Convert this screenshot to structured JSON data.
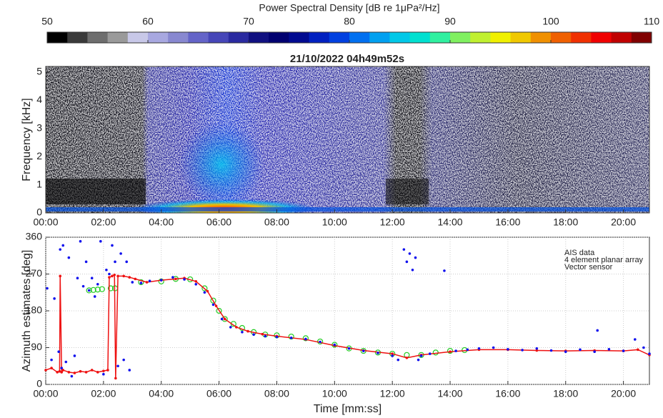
{
  "chart_data": [
    {
      "type": "colorbar",
      "title": "Power Spectral Density [dB re 1μPa²/Hz]",
      "clim": [
        50,
        110
      ],
      "cticks": [
        50,
        60,
        70,
        80,
        90,
        100,
        110
      ],
      "colors": [
        "#000000",
        "#3a3a3a",
        "#6e6e6e",
        "#9a9a9a",
        "#c8c8e8",
        "#a8a8e0",
        "#8888d0",
        "#6464c8",
        "#4646b8",
        "#2a2aa0",
        "#101080",
        "#000070",
        "#000a90",
        "#0020c0",
        "#0040e0",
        "#0070f0",
        "#00a0f0",
        "#00c8e8",
        "#00e0d0",
        "#30f0a0",
        "#80f060",
        "#c0f030",
        "#f0f000",
        "#f0c800",
        "#f09000",
        "#f06000",
        "#f03000",
        "#f00000",
        "#c00000",
        "#800000"
      ]
    },
    {
      "type": "spectrogram",
      "title": "21/10/2022 04h49m52s",
      "ylabel": "Frequency [kHz]",
      "xlim": [
        0,
        20.9
      ],
      "ylim": [
        0,
        5.2
      ],
      "yticks": [
        0,
        1,
        2,
        3,
        4,
        5
      ],
      "xticks": [
        {
          "value": 0,
          "label": "00:00"
        },
        {
          "value": 2,
          "label": "02:00"
        },
        {
          "value": 4,
          "label": "04:00"
        },
        {
          "value": 6,
          "label": "06:00"
        },
        {
          "value": 8,
          "label": "08:00"
        },
        {
          "value": 10,
          "label": "10:00"
        },
        {
          "value": 12,
          "label": "12:00"
        },
        {
          "value": 14,
          "label": "14:00"
        },
        {
          "value": 16,
          "label": "16:00"
        },
        {
          "value": 18,
          "label": "18:00"
        },
        {
          "value": 20,
          "label": "20:00"
        }
      ]
    },
    {
      "type": "scatter",
      "xlabel": "Time [mm:ss]",
      "ylabel": "Azimuth estimates [deg]",
      "grid": true,
      "legend": "top-right",
      "xlim": [
        0,
        20.9
      ],
      "ylim": [
        0,
        360
      ],
      "yticks": [
        0,
        90,
        180,
        270,
        360
      ],
      "xticks": [
        {
          "value": 0,
          "label": "00:00"
        },
        {
          "value": 2,
          "label": "02:00"
        },
        {
          "value": 4,
          "label": "04:00"
        },
        {
          "value": 6,
          "label": "06:00"
        },
        {
          "value": 8,
          "label": "08:00"
        },
        {
          "value": 10,
          "label": "10:00"
        },
        {
          "value": 12,
          "label": "12:00"
        },
        {
          "value": 14,
          "label": "14:00"
        },
        {
          "value": 16,
          "label": "16:00"
        },
        {
          "value": 18,
          "label": "18:00"
        },
        {
          "value": 20,
          "label": "20:00"
        }
      ],
      "series": [
        {
          "name": "AIS data",
          "color": "#22cc22",
          "marker": "circle",
          "x": [
            1.5,
            1.65,
            1.8,
            1.95,
            2.25,
            2.4,
            3.3,
            4.0,
            4.5,
            5.0,
            5.5,
            5.8,
            6.0,
            6.2,
            6.5,
            6.8,
            7.2,
            7.6,
            8.0,
            8.5,
            9.0,
            9.5,
            10.0,
            10.5,
            11.0,
            11.5,
            12.0,
            12.5,
            13.0,
            13.5,
            14.0,
            14.5
          ],
          "values": [
            230,
            231,
            232,
            233,
            235,
            235,
            250,
            252,
            258,
            257,
            235,
            205,
            180,
            160,
            148,
            138,
            128,
            122,
            120,
            117,
            113,
            105,
            97,
            88,
            82,
            78,
            75,
            72,
            72,
            78,
            82,
            84
          ]
        },
        {
          "name": "4 element planar array",
          "color": "#ee1111",
          "marker": "line",
          "x": [
            0,
            0.2,
            0.4,
            0.48,
            0.5,
            0.55,
            0.6,
            0.8,
            1.0,
            1.2,
            1.4,
            1.6,
            1.8,
            2.0,
            2.15,
            2.2,
            2.3,
            2.38,
            2.42,
            2.5,
            2.7,
            2.9,
            3.1,
            3.5,
            4.0,
            4.5,
            4.8,
            5.2,
            5.6,
            5.9,
            6.2,
            6.6,
            7.0,
            7.5,
            8.0,
            9.0,
            10.0,
            11.0,
            12.0,
            12.5,
            13.0,
            14.0,
            15.0,
            16.0,
            17.0,
            18.0,
            19.0,
            20.0,
            20.5,
            20.9
          ],
          "values": [
            35,
            40,
            30,
            32,
            265,
            30,
            35,
            30,
            28,
            32,
            30,
            35,
            30,
            33,
            35,
            262,
            265,
            268,
            15,
            265,
            265,
            262,
            258,
            250,
            255,
            258,
            260,
            252,
            228,
            192,
            160,
            140,
            130,
            123,
            118,
            110,
            95,
            83,
            75,
            65,
            72,
            80,
            85,
            85,
            83,
            82,
            83,
            82,
            85,
            72
          ]
        },
        {
          "name": "Vector sensor",
          "color": "#1111ee",
          "marker": "dot",
          "x": [
            0.05,
            0.2,
            0.3,
            0.45,
            0.5,
            0.55,
            0.6,
            0.7,
            0.8,
            0.9,
            1.0,
            1.1,
            1.2,
            1.3,
            1.4,
            1.5,
            1.6,
            1.7,
            1.8,
            1.9,
            2.0,
            2.1,
            2.2,
            2.3,
            2.4,
            2.5,
            2.6,
            2.7,
            2.8,
            2.9,
            3.0,
            3.3,
            3.6,
            4.0,
            4.4,
            4.8,
            5.2,
            5.5,
            5.8,
            6.1,
            6.4,
            6.8,
            7.2,
            7.6,
            8.0,
            8.5,
            9.0,
            9.5,
            10.0,
            10.5,
            11.0,
            11.5,
            12.0,
            12.2,
            12.4,
            12.5,
            12.6,
            12.7,
            12.8,
            12.9,
            13.0,
            13.3,
            13.8,
            14.2,
            14.6,
            15.0,
            15.5,
            16.0,
            16.5,
            17.0,
            17.5,
            18.0,
            18.5,
            19.0,
            19.1,
            19.5,
            20.0,
            20.4,
            20.7,
            20.9
          ],
          "values": [
            235,
            60,
            210,
            80,
            330,
            40,
            340,
            55,
            310,
            20,
            70,
            260,
            350,
            240,
            300,
            230,
            260,
            215,
            245,
            350,
            25,
            280,
            270,
            340,
            300,
            45,
            320,
            60,
            300,
            35,
            250,
            248,
            253,
            255,
            262,
            257,
            245,
            225,
            195,
            160,
            140,
            128,
            122,
            118,
            116,
            114,
            111,
            104,
            97,
            88,
            82,
            77,
            70,
            60,
            330,
            300,
            320,
            280,
            310,
            60,
            70,
            75,
            278,
            82,
            85,
            88,
            90,
            86,
            84,
            88,
            83,
            80,
            85,
            80,
            132,
            86,
            82,
            110,
            90,
            75
          ]
        }
      ]
    }
  ]
}
